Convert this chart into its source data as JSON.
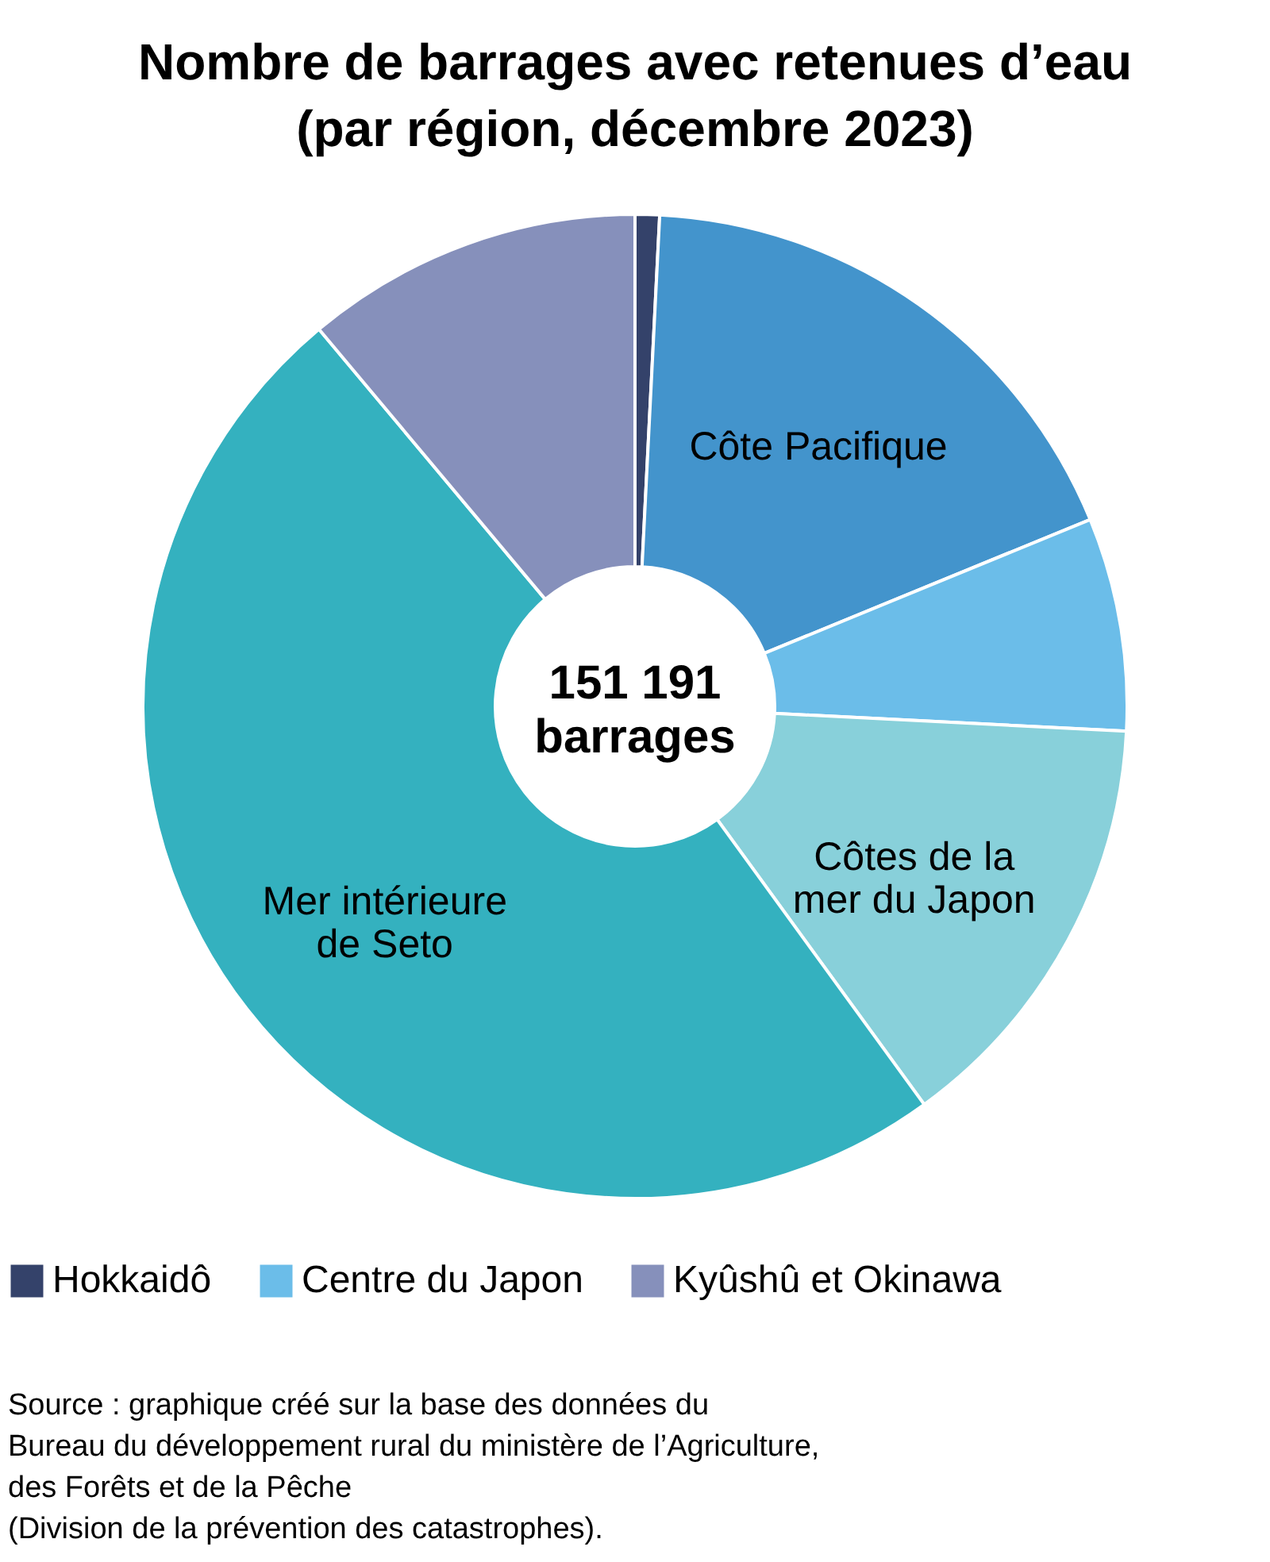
{
  "chart_data": {
    "type": "donut",
    "title": "Nombre de barrages avec retenues d’eau",
    "subtitle": "(par région, décembre 2023)",
    "categories": [
      "Hokkaidô",
      "Côte Pacifique",
      "Centre du Japon",
      "Côtes de la\nmer du Japon",
      "Mer intérieure\nde Seto",
      "Kyûshû et Okinawa"
    ],
    "values": [
      0.8,
      18.0,
      7.0,
      14.2,
      48.9,
      11.1
    ],
    "colors": [
      "#34426a",
      "#4394cc",
      "#6bbde9",
      "#88d0da",
      "#34b1bf",
      "#8690bb"
    ],
    "legend": "bottom",
    "annotations": [
      "151 191\nbarrages",
      "Source : graphique créé sur la base des données du\nBureau du développement rural du ministère de l’Agriculture,\ndes Forêts et de la Pêche\n(Division de la prévention des catastrophes)."
    ]
  }
}
